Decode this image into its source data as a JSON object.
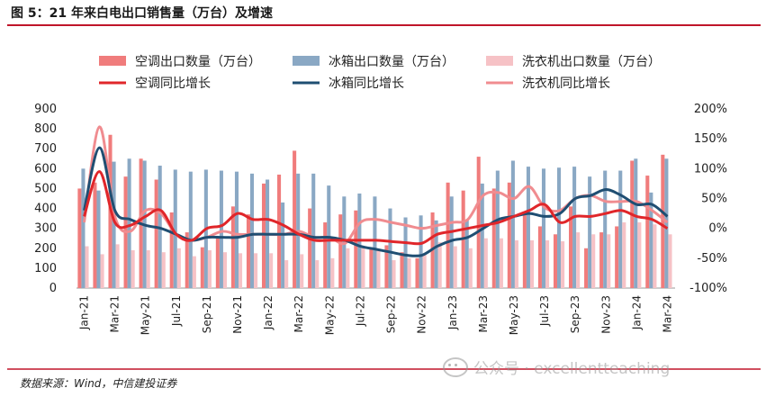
{
  "title": "图 5：21 年来白电出口销售量（万台）及增速",
  "source": "数据来源：Wind，中信建投证券",
  "watermark": "公众号 · excellentteaching",
  "colors": {
    "ac_bar": "#f07c7c",
    "fridge_bar": "#8aa8c4",
    "washer_bar": "#f6c2c6",
    "ac_line": "#e0262a",
    "fridge_line": "#1f4e72",
    "washer_line": "#f08c90",
    "title_rule": "#c0152a"
  },
  "chart_data": {
    "type": "bar",
    "title": "图 5：21 年来白电出口销售量（万台）及增速",
    "categories": [
      "Jan-21",
      "Feb-21",
      "Mar-21",
      "Apr-21",
      "May-21",
      "Jun-21",
      "Jul-21",
      "Aug-21",
      "Sep-21",
      "Oct-21",
      "Nov-21",
      "Dec-21",
      "Jan-22",
      "Feb-22",
      "Mar-22",
      "Apr-22",
      "May-22",
      "Jun-22",
      "Jul-22",
      "Aug-22",
      "Sep-22",
      "Oct-22",
      "Nov-22",
      "Dec-22",
      "Jan-23",
      "Feb-23",
      "Mar-23",
      "Apr-23",
      "May-23",
      "Jun-23",
      "Jul-23",
      "Aug-23",
      "Sep-23",
      "Oct-23",
      "Nov-23",
      "Dec-23",
      "Jan-24",
      "Feb-24",
      "Mar-24"
    ],
    "x_tick_labels": [
      "Jan-21",
      "Mar-21",
      "May-21",
      "Jul-21",
      "Sep-21",
      "Nov-21",
      "Jan-22",
      "Mar-22",
      "May-22",
      "Jul-22",
      "Sep-22",
      "Nov-22",
      "Jan-23",
      "Mar-23",
      "May-23",
      "Jul-23",
      "Sep-23",
      "Nov-23",
      "Jan-24",
      "Mar-24"
    ],
    "left_axis": {
      "range": [
        0,
        900
      ],
      "ticks": [
        0,
        100,
        200,
        300,
        400,
        500,
        600,
        700,
        800,
        900
      ]
    },
    "right_axis": {
      "range": [
        -100,
        200
      ],
      "ticks": [
        -100,
        -50,
        0,
        50,
        100,
        150,
        200
      ],
      "tick_labels": [
        "-100%",
        "-50%",
        "0%",
        "50%",
        "100%",
        "150%",
        "200%"
      ]
    },
    "legend_position": "top",
    "series": [
      {
        "name": "空调出口数量（万台）",
        "kind": "bar",
        "axis": "left",
        "values": [
          500,
          530,
          770,
          560,
          650,
          545,
          380,
          280,
          205,
          250,
          410,
          370,
          525,
          570,
          690,
          400,
          330,
          370,
          390,
          200,
          215,
          180,
          150,
          380,
          530,
          490,
          660,
          500,
          530,
          370,
          310,
          270,
          410,
          200,
          280,
          310,
          640,
          565,
          670
        ]
      },
      {
        "name": "冰箱出口数量（万台）",
        "kind": "bar",
        "axis": "left",
        "values": [
          600,
          490,
          635,
          650,
          640,
          615,
          595,
          585,
          595,
          590,
          585,
          575,
          545,
          430,
          575,
          575,
          515,
          460,
          475,
          460,
          400,
          355,
          365,
          340,
          460,
          340,
          525,
          590,
          640,
          610,
          600,
          605,
          610,
          560,
          590,
          590,
          650,
          480,
          650
        ]
      },
      {
        "name": "洗衣机出口数量（万台）",
        "kind": "bar",
        "axis": "left",
        "values": [
          210,
          170,
          220,
          190,
          190,
          180,
          200,
          160,
          190,
          180,
          175,
          175,
          175,
          140,
          170,
          140,
          150,
          200,
          210,
          190,
          140,
          150,
          170,
          230,
          210,
          200,
          250,
          250,
          240,
          240,
          240,
          235,
          280,
          270,
          270,
          330,
          330,
          320,
          270
        ]
      },
      {
        "name": "空调同比增长",
        "kind": "line",
        "axis": "right",
        "values": [
          20,
          95,
          10,
          5,
          20,
          30,
          -10,
          -20,
          0,
          5,
          25,
          15,
          15,
          5,
          -10,
          -20,
          -20,
          -20,
          -20,
          -20,
          -22,
          -24,
          -25,
          -10,
          -5,
          0,
          5,
          10,
          20,
          30,
          40,
          10,
          20,
          20,
          25,
          30,
          20,
          15,
          0
        ]
      },
      {
        "name": "冰箱同比增长",
        "kind": "line",
        "axis": "right",
        "values": [
          30,
          135,
          30,
          15,
          5,
          0,
          -10,
          -20,
          -15,
          -15,
          -15,
          -10,
          -10,
          -10,
          -10,
          -15,
          -15,
          -20,
          -30,
          -35,
          -40,
          -45,
          -45,
          -30,
          -20,
          -15,
          0,
          15,
          20,
          25,
          20,
          25,
          50,
          55,
          65,
          55,
          40,
          40,
          20
        ]
      },
      {
        "name": "洗衣机同比增长",
        "kind": "line",
        "axis": "right",
        "values": [
          10,
          170,
          20,
          -5,
          30,
          25,
          -10,
          -20,
          -15,
          -5,
          -10,
          -10,
          -10,
          -10,
          -5,
          -15,
          -15,
          -25,
          10,
          15,
          10,
          5,
          0,
          5,
          10,
          15,
          55,
          60,
          50,
          70,
          35,
          30,
          50,
          55,
          45,
          45,
          45,
          30,
          10
        ]
      }
    ]
  }
}
